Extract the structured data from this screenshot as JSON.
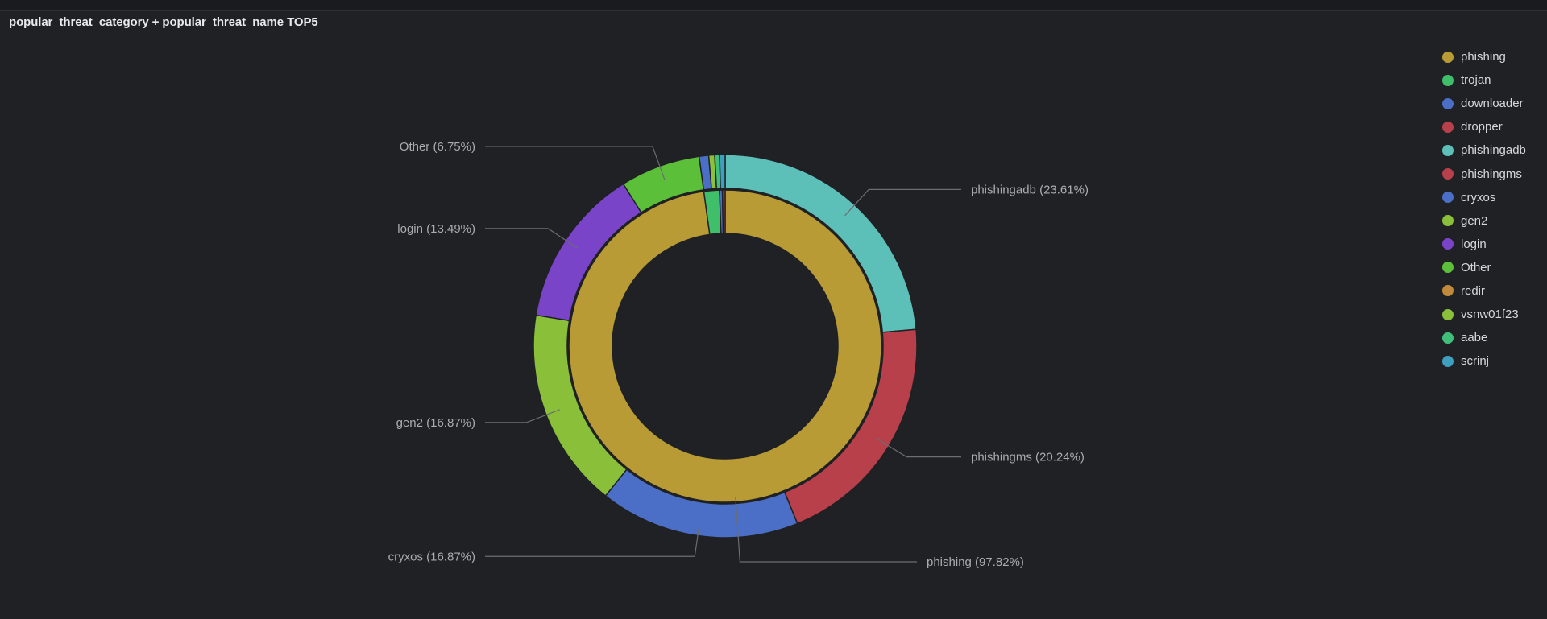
{
  "panel": {
    "title": "popular_threat_category + popular_threat_name TOP5"
  },
  "colors": {
    "background": "#202124",
    "phishing": "#b89b35",
    "trojan": "#3fbf6a",
    "downloader": "#4b6fc6",
    "dropper": "#b8404a",
    "phishingadb": "#5cc0b8",
    "phishingms": "#b8404a",
    "cryxos": "#4b6fc6",
    "gen2": "#8abf3a",
    "login": "#7a44c8",
    "Other": "#5cbf3a",
    "redir": "#c08a3a",
    "vsnw01f23": "#8ac03a",
    "aabe": "#3fbf7a",
    "scrinj": "#3f9fbf"
  },
  "legend": [
    {
      "label": "phishing",
      "color": "#b89b35"
    },
    {
      "label": "trojan",
      "color": "#3fbf6a"
    },
    {
      "label": "downloader",
      "color": "#4b6fc6"
    },
    {
      "label": "dropper",
      "color": "#b8404a"
    },
    {
      "label": "phishingadb",
      "color": "#5cc0b8"
    },
    {
      "label": "phishingms",
      "color": "#b8404a"
    },
    {
      "label": "cryxos",
      "color": "#4b6fc6"
    },
    {
      "label": "gen2",
      "color": "#8abf3a"
    },
    {
      "label": "login",
      "color": "#7a44c8"
    },
    {
      "label": "Other",
      "color": "#5cbf3a"
    },
    {
      "label": "redir",
      "color": "#c08a3a"
    },
    {
      "label": "vsnw01f23",
      "color": "#8ac03a"
    },
    {
      "label": "aabe",
      "color": "#3fbf7a"
    },
    {
      "label": "scrinj",
      "color": "#3f9fbf"
    }
  ],
  "chart_data": {
    "type": "pie",
    "title": "popular_threat_category + popular_threat_name TOP5",
    "legend_position": "right",
    "inner_ring": {
      "name": "popular_threat_category",
      "slices": [
        {
          "label": "phishing",
          "value": 97.82,
          "color": "#b89b35"
        },
        {
          "label": "trojan",
          "value": 1.6,
          "color": "#3fbf6a"
        },
        {
          "label": "downloader",
          "value": 0.3,
          "color": "#4b6fc6"
        },
        {
          "label": "dropper",
          "value": 0.28,
          "color": "#b8404a"
        }
      ]
    },
    "outer_ring": {
      "name": "popular_threat_name",
      "slices": [
        {
          "label": "phishingadb",
          "value": 23.61,
          "color": "#5cc0b8"
        },
        {
          "label": "phishingms",
          "value": 20.24,
          "color": "#b8404a"
        },
        {
          "label": "cryxos",
          "value": 16.87,
          "color": "#4b6fc6"
        },
        {
          "label": "gen2",
          "value": 16.87,
          "color": "#8abf3a"
        },
        {
          "label": "login",
          "value": 13.49,
          "color": "#7a44c8"
        },
        {
          "label": "Other",
          "value": 6.75,
          "color": "#5cbf3a"
        },
        {
          "label": "redir",
          "value": 0.8,
          "color": "#4b6fc6"
        },
        {
          "label": "vsnw01f23",
          "value": 0.5,
          "color": "#8ac03a"
        },
        {
          "label": "aabe",
          "value": 0.4,
          "color": "#3fbf7a"
        },
        {
          "label": "scrinj",
          "value": 0.47,
          "color": "#3f9fbf"
        }
      ]
    },
    "callouts": [
      {
        "text": "phishingadb (23.61%)",
        "ring": "outer",
        "slice": "phishingadb"
      },
      {
        "text": "phishingms (20.24%)",
        "ring": "outer",
        "slice": "phishingms"
      },
      {
        "text": "phishing (97.82%)",
        "ring": "inner",
        "slice": "phishing"
      },
      {
        "text": "cryxos (16.87%)",
        "ring": "outer",
        "slice": "cryxos"
      },
      {
        "text": "gen2 (16.87%)",
        "ring": "outer",
        "slice": "gen2"
      },
      {
        "text": "login (13.49%)",
        "ring": "outer",
        "slice": "login"
      },
      {
        "text": "Other (6.75%)",
        "ring": "outer",
        "slice": "Other"
      }
    ]
  }
}
